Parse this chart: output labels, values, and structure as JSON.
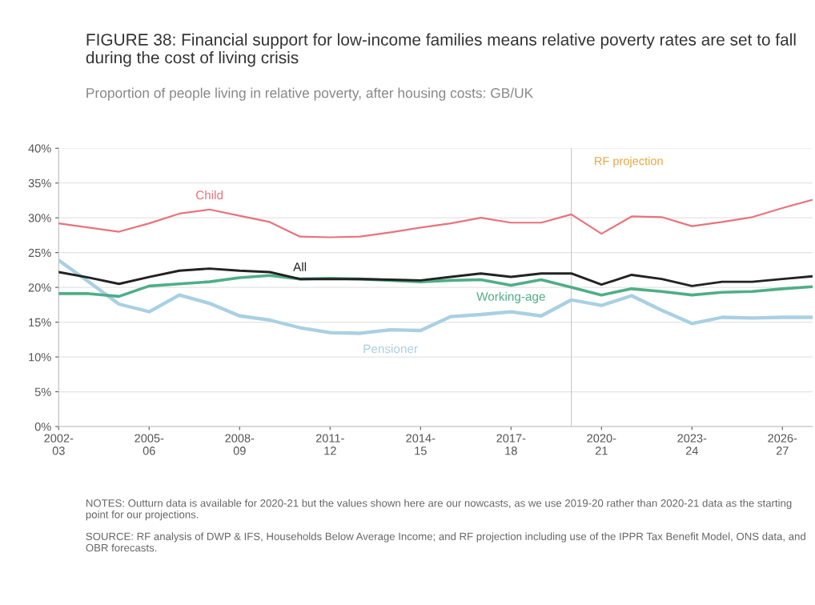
{
  "chart_data": {
    "type": "line",
    "title": "FIGURE 38: Financial support for low-income families means relative poverty rates are set to fall during the cost of living crisis",
    "subtitle": "Proportion of people living in relative poverty, after housing costs: GB/UK",
    "categories": [
      "2002-\n03",
      null,
      null,
      "2005-\n06",
      null,
      null,
      "2008-\n09",
      null,
      null,
      "2011-\n12",
      null,
      null,
      "2014-\n15",
      null,
      null,
      "2017-\n18",
      null,
      null,
      "2020-\n21",
      null,
      null,
      "2023-\n24",
      null,
      null,
      "2026-\n27",
      null
    ],
    "series": [
      {
        "name": "Child",
        "color": "#e8737d",
        "values": [
          29.2,
          28.6,
          28.0,
          29.2,
          30.6,
          31.2,
          30.3,
          29.4,
          27.3,
          27.2,
          27.3,
          27.9,
          28.6,
          29.2,
          30.0,
          29.3,
          29.3,
          30.5,
          27.7,
          30.2,
          30.1,
          28.8,
          29.4,
          30.1,
          31.4,
          32.6
        ]
      },
      {
        "name": "All",
        "color": "#222222",
        "values": [
          22.2,
          21.4,
          20.5,
          21.5,
          22.4,
          22.7,
          22.4,
          22.2,
          21.2,
          21.2,
          21.2,
          21.1,
          21.0,
          21.5,
          22.0,
          21.5,
          22.0,
          22.0,
          20.4,
          21.8,
          21.2,
          20.2,
          20.8,
          20.8,
          21.2,
          21.6
        ]
      },
      {
        "name": "Working-age",
        "color": "#4fae86",
        "values": [
          19.1,
          19.1,
          18.7,
          20.2,
          20.5,
          20.8,
          21.4,
          21.7,
          21.2,
          21.3,
          21.2,
          21.0,
          20.8,
          21.0,
          21.1,
          20.3,
          21.1,
          20.0,
          18.9,
          19.8,
          19.4,
          18.9,
          19.3,
          19.4,
          19.8,
          20.1
        ]
      },
      {
        "name": "Pensioner",
        "color": "#a9d0e2",
        "values": [
          23.9,
          20.8,
          17.6,
          16.5,
          18.9,
          17.7,
          15.9,
          15.3,
          14.2,
          13.5,
          13.4,
          13.9,
          13.8,
          15.8,
          16.1,
          16.5,
          15.9,
          18.2,
          17.4,
          18.8,
          16.7,
          14.8,
          15.7,
          15.6,
          15.7,
          15.7
        ]
      }
    ],
    "ylim": [
      0,
      40
    ],
    "yticks": [
      {
        "value": 0,
        "label": "0%"
      },
      {
        "value": 5,
        "label": "5%"
      },
      {
        "value": 10,
        "label": "10%"
      },
      {
        "value": 15,
        "label": "15%"
      },
      {
        "value": 20,
        "label": "20%"
      },
      {
        "value": 25,
        "label": "25%"
      },
      {
        "value": 30,
        "label": "30%"
      },
      {
        "value": 35,
        "label": "35%"
      },
      {
        "value": 40,
        "label": "40%"
      }
    ],
    "grid": "y",
    "legend": false,
    "annotations": [
      "RF projection",
      "NOTES: Outturn data is available for 2020-21 but the values shown here are our nowcasts, as we use 2019-20 rather than 2020-21 data as the starting point for our projections.",
      "SOURCE: RF analysis of DWP & IFS, Households Below Average Income; and RF projection including use of the IPPR Tax Benefit Model, ONS data, and OBR forecasts."
    ]
  }
}
